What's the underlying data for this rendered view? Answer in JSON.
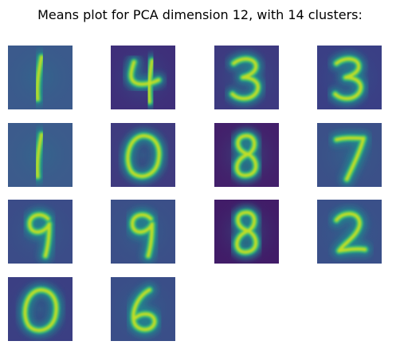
{
  "title": "Means plot for PCA dimension 12, with 14 clusters:",
  "colormap": "viridis",
  "colors": {
    "low": "#440154",
    "mid": "#21918c",
    "high": "#fde725",
    "background_tile": "#3b4a8a"
  },
  "chart_data": {
    "type": "heatmap",
    "title": "Means plot for PCA dimension 12, with 14 clusters:",
    "description_rows": 4,
    "description_cols": 4,
    "clusters": [
      {
        "digit": "1",
        "bg": "#3b5a8c"
      },
      {
        "digit": "4",
        "bg": "#3e2f7a"
      },
      {
        "digit": "3",
        "bg": "#3d3a80"
      },
      {
        "digit": "3",
        "bg": "#3a3f85"
      },
      {
        "digit": "1",
        "bg": "#3c5b8c"
      },
      {
        "digit": "0",
        "bg": "#3f3b7f"
      },
      {
        "digit": "8",
        "bg": "#43206b"
      },
      {
        "digit": "7",
        "bg": "#3b5088"
      },
      {
        "digit": "9",
        "bg": "#3b4c88"
      },
      {
        "digit": "9",
        "bg": "#3b4f88"
      },
      {
        "digit": "8",
        "bg": "#411c68"
      },
      {
        "digit": "2",
        "bg": "#3a5089"
      },
      {
        "digit": "0",
        "bg": "#3b3f83"
      },
      {
        "digit": "6",
        "bg": "#3a4e88"
      }
    ]
  }
}
